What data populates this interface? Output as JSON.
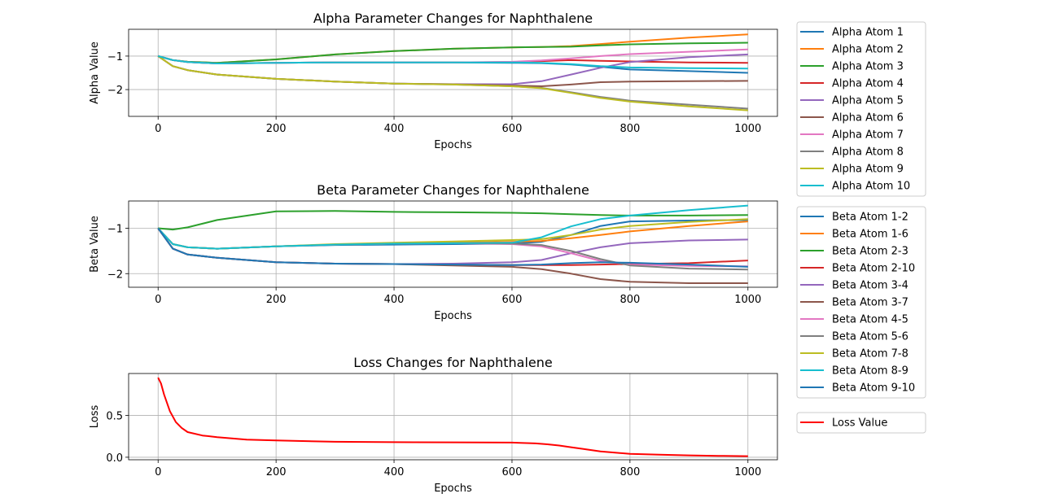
{
  "figure": {
    "background": "#ffffff"
  },
  "chart_data": [
    {
      "type": "line",
      "title": "Alpha Parameter Changes for Naphthalene",
      "xlabel": "Epochs",
      "ylabel": "Alpha Value",
      "xlim": [
        -50,
        1050
      ],
      "ylim": [
        -2.8,
        -0.2
      ],
      "xticks": [
        0,
        200,
        400,
        600,
        800,
        1000
      ],
      "yticks": [
        -1,
        -2
      ],
      "grid": true,
      "legend": "outside-right",
      "x": [
        0,
        25,
        50,
        100,
        200,
        300,
        400,
        500,
        600,
        650,
        700,
        750,
        800,
        900,
        1000
      ],
      "series": [
        {
          "name": "Alpha Atom 1",
          "color": "#1f77b4",
          "values": [
            -1.0,
            -1.12,
            -1.18,
            -1.22,
            -1.2,
            -1.19,
            -1.19,
            -1.19,
            -1.2,
            -1.21,
            -1.25,
            -1.32,
            -1.4,
            -1.45,
            -1.5
          ]
        },
        {
          "name": "Alpha Atom 2",
          "color": "#ff7f0e",
          "values": [
            -1.0,
            -1.12,
            -1.17,
            -1.2,
            -1.1,
            -0.95,
            -0.85,
            -0.78,
            -0.74,
            -0.73,
            -0.7,
            -0.64,
            -0.57,
            -0.45,
            -0.35
          ]
        },
        {
          "name": "Alpha Atom 3",
          "color": "#2ca02c",
          "values": [
            -1.0,
            -1.12,
            -1.17,
            -1.2,
            -1.1,
            -0.95,
            -0.85,
            -0.78,
            -0.74,
            -0.73,
            -0.72,
            -0.68,
            -0.65,
            -0.62,
            -0.6
          ]
        },
        {
          "name": "Alpha Atom 4",
          "color": "#d62728",
          "values": [
            -1.0,
            -1.12,
            -1.18,
            -1.22,
            -1.2,
            -1.19,
            -1.19,
            -1.19,
            -1.18,
            -1.15,
            -1.12,
            -1.14,
            -1.16,
            -1.19,
            -1.2
          ]
        },
        {
          "name": "Alpha Atom 5",
          "color": "#9467bd",
          "values": [
            -1.0,
            -1.3,
            -1.42,
            -1.55,
            -1.68,
            -1.76,
            -1.82,
            -1.84,
            -1.84,
            -1.75,
            -1.55,
            -1.35,
            -1.18,
            -1.03,
            -0.95
          ]
        },
        {
          "name": "Alpha Atom 6",
          "color": "#8c564b",
          "values": [
            -1.0,
            -1.3,
            -1.42,
            -1.55,
            -1.68,
            -1.76,
            -1.82,
            -1.84,
            -1.88,
            -1.9,
            -1.85,
            -1.78,
            -1.76,
            -1.75,
            -1.74
          ]
        },
        {
          "name": "Alpha Atom 7",
          "color": "#e377c2",
          "values": [
            -1.0,
            -1.12,
            -1.18,
            -1.22,
            -1.2,
            -1.19,
            -1.19,
            -1.19,
            -1.17,
            -1.13,
            -1.07,
            -1.0,
            -0.94,
            -0.87,
            -0.8
          ]
        },
        {
          "name": "Alpha Atom 8",
          "color": "#7f7f7f",
          "values": [
            -1.0,
            -1.3,
            -1.42,
            -1.55,
            -1.68,
            -1.76,
            -1.82,
            -1.85,
            -1.9,
            -1.95,
            -2.08,
            -2.22,
            -2.33,
            -2.45,
            -2.57
          ]
        },
        {
          "name": "Alpha Atom 9",
          "color": "#bcbd22",
          "values": [
            -1.0,
            -1.3,
            -1.42,
            -1.55,
            -1.68,
            -1.76,
            -1.82,
            -1.85,
            -1.9,
            -1.96,
            -2.1,
            -2.25,
            -2.36,
            -2.5,
            -2.62
          ]
        },
        {
          "name": "Alpha Atom 10",
          "color": "#17becf",
          "values": [
            -1.0,
            -1.12,
            -1.18,
            -1.22,
            -1.2,
            -1.19,
            -1.19,
            -1.19,
            -1.19,
            -1.2,
            -1.24,
            -1.3,
            -1.34,
            -1.36,
            -1.37
          ]
        }
      ]
    },
    {
      "type": "line",
      "title": "Beta Parameter Changes for Naphthalene",
      "xlabel": "Epochs",
      "ylabel": "Beta Value",
      "xlim": [
        -50,
        1050
      ],
      "ylim": [
        -2.3,
        -0.4
      ],
      "xticks": [
        0,
        200,
        400,
        600,
        800,
        1000
      ],
      "yticks": [
        -1,
        -2
      ],
      "grid": true,
      "legend": "outside-right",
      "x": [
        0,
        25,
        50,
        100,
        200,
        300,
        400,
        500,
        600,
        650,
        700,
        750,
        800,
        900,
        1000
      ],
      "series": [
        {
          "name": "Beta Atom 1-2",
          "color": "#1f77b4",
          "values": [
            -1.0,
            -1.35,
            -1.42,
            -1.45,
            -1.4,
            -1.37,
            -1.36,
            -1.35,
            -1.34,
            -1.3,
            -1.15,
            -0.95,
            -0.85,
            -0.83,
            -0.82
          ]
        },
        {
          "name": "Beta Atom 1-6",
          "color": "#ff7f0e",
          "values": [
            -1.0,
            -1.35,
            -1.42,
            -1.45,
            -1.4,
            -1.36,
            -1.34,
            -1.32,
            -1.3,
            -1.28,
            -1.22,
            -1.15,
            -1.07,
            -0.95,
            -0.85
          ]
        },
        {
          "name": "Beta Atom 2-3",
          "color": "#2ca02c",
          "values": [
            -1.0,
            -1.03,
            -0.98,
            -0.82,
            -0.63,
            -0.62,
            -0.64,
            -0.65,
            -0.66,
            -0.67,
            -0.69,
            -0.71,
            -0.72,
            -0.72,
            -0.71
          ]
        },
        {
          "name": "Beta Atom 2-10",
          "color": "#d62728",
          "values": [
            -1.0,
            -1.45,
            -1.58,
            -1.65,
            -1.75,
            -1.78,
            -1.79,
            -1.8,
            -1.81,
            -1.81,
            -1.81,
            -1.8,
            -1.79,
            -1.77,
            -1.71
          ]
        },
        {
          "name": "Beta Atom 3-4",
          "color": "#9467bd",
          "values": [
            -1.0,
            -1.45,
            -1.58,
            -1.65,
            -1.75,
            -1.78,
            -1.79,
            -1.78,
            -1.75,
            -1.7,
            -1.55,
            -1.42,
            -1.33,
            -1.27,
            -1.25
          ]
        },
        {
          "name": "Beta Atom 3-7",
          "color": "#8c564b",
          "values": [
            -1.0,
            -1.45,
            -1.58,
            -1.65,
            -1.75,
            -1.78,
            -1.79,
            -1.82,
            -1.85,
            -1.9,
            -2.0,
            -2.12,
            -2.18,
            -2.21,
            -2.21
          ]
        },
        {
          "name": "Beta Atom 4-5",
          "color": "#e377c2",
          "values": [
            -1.0,
            -1.35,
            -1.42,
            -1.45,
            -1.4,
            -1.36,
            -1.34,
            -1.33,
            -1.35,
            -1.4,
            -1.55,
            -1.72,
            -1.8,
            -1.83,
            -1.84
          ]
        },
        {
          "name": "Beta Atom 5-6",
          "color": "#7f7f7f",
          "values": [
            -1.0,
            -1.35,
            -1.42,
            -1.45,
            -1.4,
            -1.36,
            -1.34,
            -1.33,
            -1.34,
            -1.37,
            -1.5,
            -1.68,
            -1.82,
            -1.89,
            -1.91
          ]
        },
        {
          "name": "Beta Atom 7-8",
          "color": "#bcbd22",
          "values": [
            -1.0,
            -1.35,
            -1.42,
            -1.45,
            -1.4,
            -1.35,
            -1.32,
            -1.29,
            -1.26,
            -1.24,
            -1.15,
            -1.03,
            -0.95,
            -0.86,
            -0.8
          ]
        },
        {
          "name": "Beta Atom 8-9",
          "color": "#17becf",
          "values": [
            -1.0,
            -1.35,
            -1.42,
            -1.45,
            -1.4,
            -1.36,
            -1.34,
            -1.33,
            -1.32,
            -1.2,
            -0.96,
            -0.8,
            -0.72,
            -0.6,
            -0.5
          ]
        },
        {
          "name": "Beta Atom 9-10",
          "color": "#1f77b4",
          "values": [
            -1.0,
            -1.45,
            -1.58,
            -1.65,
            -1.75,
            -1.78,
            -1.79,
            -1.8,
            -1.81,
            -1.8,
            -1.77,
            -1.75,
            -1.76,
            -1.8,
            -1.85
          ]
        }
      ]
    },
    {
      "type": "line",
      "title": "Loss Changes for Naphthalene",
      "xlabel": "Epochs",
      "ylabel": "Loss",
      "xlim": [
        -50,
        1050
      ],
      "ylim": [
        -0.03,
        1.0
      ],
      "xticks": [
        0,
        200,
        400,
        600,
        800,
        1000
      ],
      "yticks": [
        0.0,
        0.5
      ],
      "ytick_labels": [
        "0.0",
        "0.5"
      ],
      "grid": true,
      "legend": "outside-right",
      "x": [
        0,
        5,
        10,
        20,
        30,
        40,
        50,
        75,
        100,
        150,
        200,
        300,
        400,
        500,
        600,
        640,
        660,
        680,
        700,
        720,
        750,
        800,
        850,
        900,
        950,
        1000
      ],
      "series": [
        {
          "name": "Loss Value",
          "color": "#ff0000",
          "values": [
            0.95,
            0.88,
            0.75,
            0.55,
            0.42,
            0.35,
            0.3,
            0.26,
            0.24,
            0.21,
            0.2,
            0.185,
            0.18,
            0.178,
            0.175,
            0.165,
            0.155,
            0.14,
            0.12,
            0.1,
            0.07,
            0.04,
            0.03,
            0.022,
            0.017,
            0.013
          ]
        }
      ]
    }
  ]
}
